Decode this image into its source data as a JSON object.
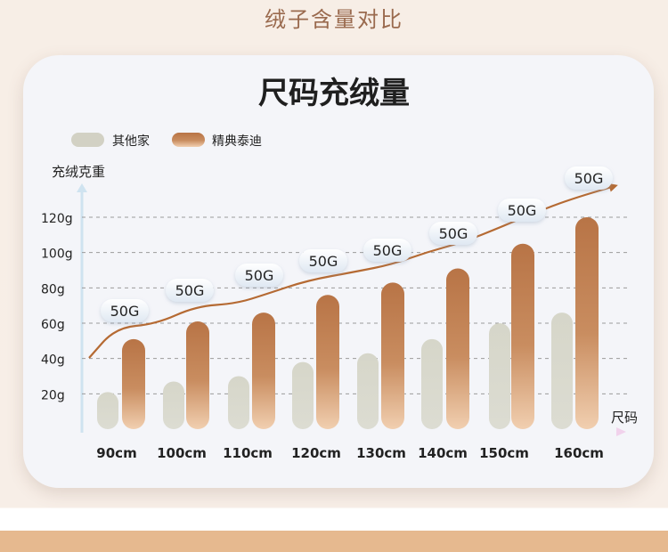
{
  "page": {
    "section_title": "绒子含量对比",
    "card_title": "尺码充绒量"
  },
  "colors": {
    "other": "#d2d1c4",
    "ours_top": "#b97a4c",
    "ours_bottom": "#f0c7a5",
    "trend": "#b56a33",
    "axis": "#cfe3f0",
    "grid": "#9a9a9a",
    "title_text": "#9a6a4e",
    "band": "#e6b98f"
  },
  "chart_data": {
    "type": "bar",
    "title": "尺码充绒量",
    "xlabel": "尺码",
    "ylabel": "充绒克重",
    "categories": [
      "90cm",
      "100cm",
      "110cm",
      "120cm",
      "130cm",
      "140cm",
      "150cm",
      "160cm"
    ],
    "yticks": [
      "20g",
      "40g",
      "60g",
      "80g",
      "100g",
      "120g"
    ],
    "ylim": [
      0,
      120
    ],
    "grid": true,
    "legend": "top-left",
    "series": [
      {
        "name": "其他家",
        "values": [
          21,
          27,
          30,
          38,
          43,
          51,
          60,
          66
        ]
      },
      {
        "name": "精典泰迪",
        "values": [
          51,
          61,
          66,
          76,
          83,
          91,
          105,
          120
        ]
      }
    ],
    "trend_label": "50G",
    "annotations": [
      "50G",
      "50G",
      "50G",
      "50G",
      "50G",
      "50G",
      "50G",
      "50G"
    ]
  }
}
